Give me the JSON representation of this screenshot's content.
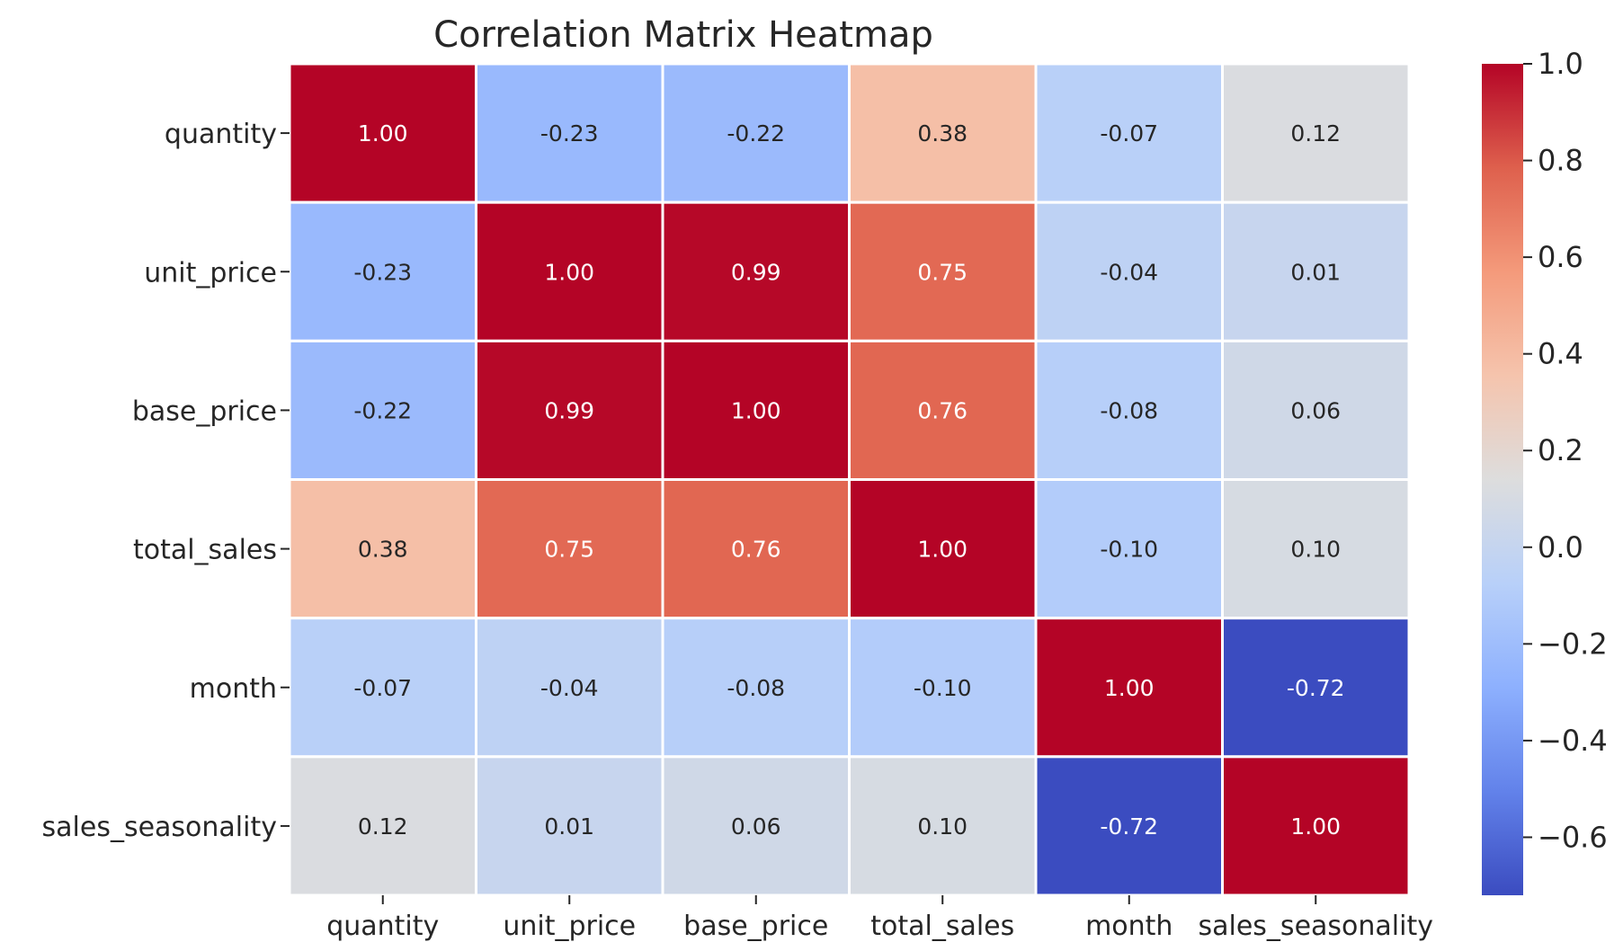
{
  "chart_data": {
    "type": "heatmap",
    "title": "Correlation Matrix Heatmap",
    "x_categories": [
      "quantity",
      "unit_price",
      "base_price",
      "total_sales",
      "month",
      "sales_seasonality"
    ],
    "y_categories": [
      "quantity",
      "unit_price",
      "base_price",
      "total_sales",
      "month",
      "sales_seasonality"
    ],
    "values": [
      [
        1.0,
        -0.23,
        -0.22,
        0.38,
        -0.07,
        0.12
      ],
      [
        -0.23,
        1.0,
        0.99,
        0.75,
        -0.04,
        0.01
      ],
      [
        -0.22,
        0.99,
        1.0,
        0.76,
        -0.08,
        0.06
      ],
      [
        0.38,
        0.75,
        0.76,
        1.0,
        -0.1,
        0.1
      ],
      [
        -0.07,
        -0.04,
        -0.08,
        -0.1,
        1.0,
        -0.72
      ],
      [
        0.12,
        0.01,
        0.06,
        0.1,
        -0.72,
        1.0
      ]
    ],
    "cell_labels": [
      [
        "1.00",
        "-0.23",
        "-0.22",
        "0.38",
        "-0.07",
        "0.12"
      ],
      [
        "-0.23",
        "1.00",
        "0.99",
        "0.75",
        "-0.04",
        "0.01"
      ],
      [
        "-0.22",
        "0.99",
        "1.00",
        "0.76",
        "-0.08",
        "0.06"
      ],
      [
        "0.38",
        "0.75",
        "0.76",
        "1.00",
        "-0.10",
        "0.10"
      ],
      [
        "-0.07",
        "-0.04",
        "-0.08",
        "-0.10",
        "1.00",
        "-0.72"
      ],
      [
        "0.12",
        "0.01",
        "0.06",
        "0.10",
        "-0.72",
        "1.00"
      ]
    ],
    "colormap": "coolwarm",
    "colorbar": {
      "range": [
        -0.72,
        1.0
      ],
      "ticks": [
        1.0,
        0.8,
        0.6,
        0.4,
        0.2,
        0.0,
        -0.2,
        -0.4,
        -0.6
      ],
      "tick_labels": [
        "1.0",
        "0.8",
        "0.6",
        "0.4",
        "0.2",
        "0.0",
        "−0.2",
        "−0.4",
        "−0.6"
      ],
      "placement": "right"
    },
    "grid": false,
    "cell_border_color": "#ffffff"
  }
}
